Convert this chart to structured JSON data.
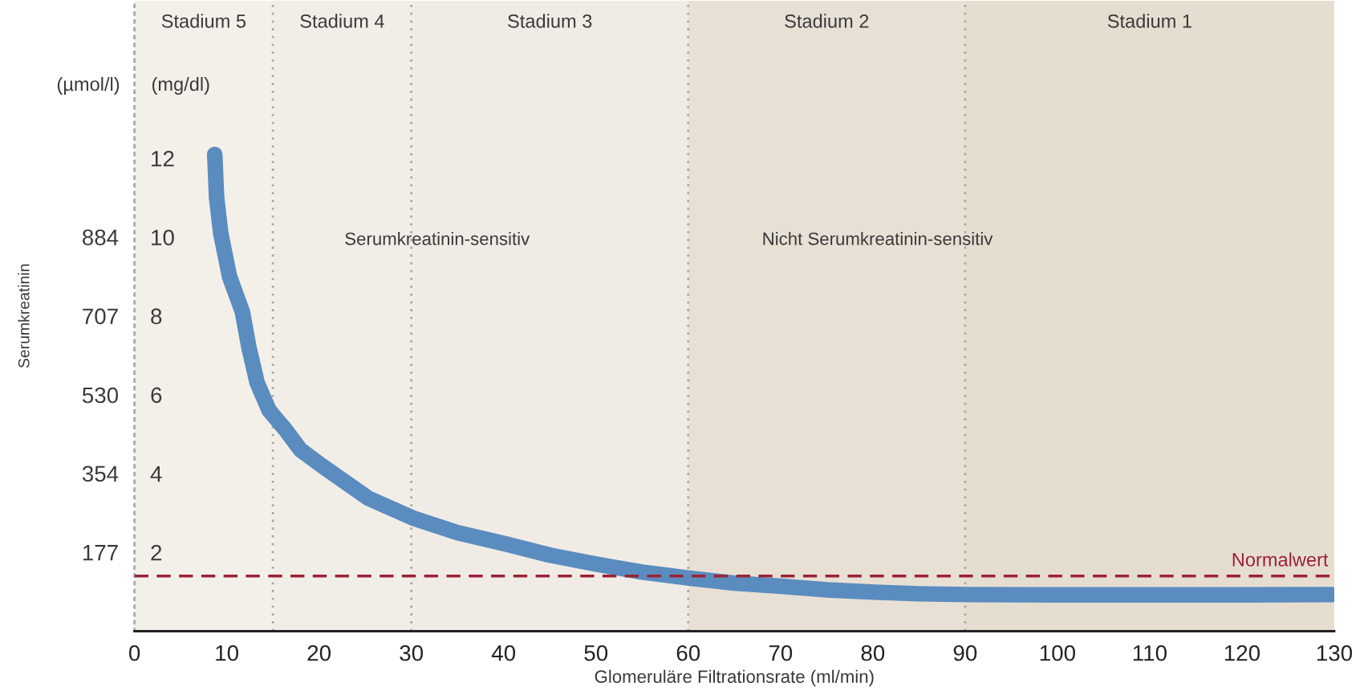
{
  "chart_data": {
    "type": "line",
    "xlabel": "Glomeruläre Filtrationsrate (ml/min)",
    "y2label": "Serumkreatinin",
    "annotations": [
      "(µmol/l)",
      "(mg/dl)",
      "Serumkreatinin-sensitiv",
      "Nicht Serumkreatinin-sensitiv"
    ],
    "x": [
      8.7,
      8.9,
      9.35,
      10.3,
      11.7,
      12.4,
      13.3,
      14.6,
      16.3,
      18,
      20.3,
      25.3,
      30.3,
      35,
      40.3,
      45,
      50.3,
      55,
      60.3,
      65,
      70.1,
      75,
      80.2,
      85,
      90.3,
      100,
      110,
      120,
      129.7
    ],
    "series": [
      {
        "color": "#5b8cc0",
        "values": [
          12.1,
          11.0,
          10.1,
          9.0,
          8.1,
          7.2,
          6.3,
          5.6,
          5.13,
          4.6,
          4.2,
          3.38,
          2.86,
          2.5,
          2.21,
          1.93,
          1.69,
          1.5,
          1.34,
          1.22,
          1.14,
          1.05,
          0.99,
          0.95,
          0.93,
          0.92,
          0.92,
          0.92,
          0.93
        ]
      }
    ],
    "xlim": [
      0,
      130
    ],
    "xticks": [
      0,
      10,
      20,
      30,
      40,
      50,
      60,
      70,
      80,
      90,
      100,
      110,
      120,
      130
    ],
    "ylim": [
      0,
      16
    ],
    "yticks": [
      2,
      4,
      6,
      8,
      10,
      12
    ],
    "y2lim": [
      0,
      1414
    ],
    "y2ticks": [
      177,
      354,
      530,
      707,
      884
    ],
    "ref_lines": [
      {
        "axis": "y",
        "value": 1.4,
        "label": "Normalwert",
        "color": "#9b2335",
        "line_style": "dashed"
      },
      {
        "axis": "x",
        "value": 15,
        "color": "#aaaaaa",
        "line_style": "dotted"
      },
      {
        "axis": "x",
        "value": 30,
        "color": "#aaaaaa",
        "line_style": "dotted"
      },
      {
        "axis": "x",
        "value": 60,
        "color": "#aaaaaa",
        "line_style": "dotted"
      },
      {
        "axis": "x",
        "value": 90,
        "color": "#aaaaaa",
        "line_style": "dotted"
      }
    ],
    "bands": [
      {
        "axis": "x",
        "from": 0,
        "to": 15,
        "label": "Stadium 5",
        "color": "#f3f0ea"
      },
      {
        "axis": "x",
        "from": 15,
        "to": 30,
        "label": "Stadium 4",
        "color": "#f1eee7"
      },
      {
        "axis": "x",
        "from": 30,
        "to": 60,
        "label": "Stadium 3",
        "color": "#f0ece5"
      },
      {
        "axis": "x",
        "from": 60,
        "to": 90,
        "label": "Stadium 2",
        "color": "#e8e0d5"
      },
      {
        "axis": "x",
        "from": 90,
        "to": 130,
        "label": "Stadium 1",
        "color": "#e6ddd1"
      }
    ],
    "grid": false,
    "line_style": "solid",
    "marker": "none"
  }
}
